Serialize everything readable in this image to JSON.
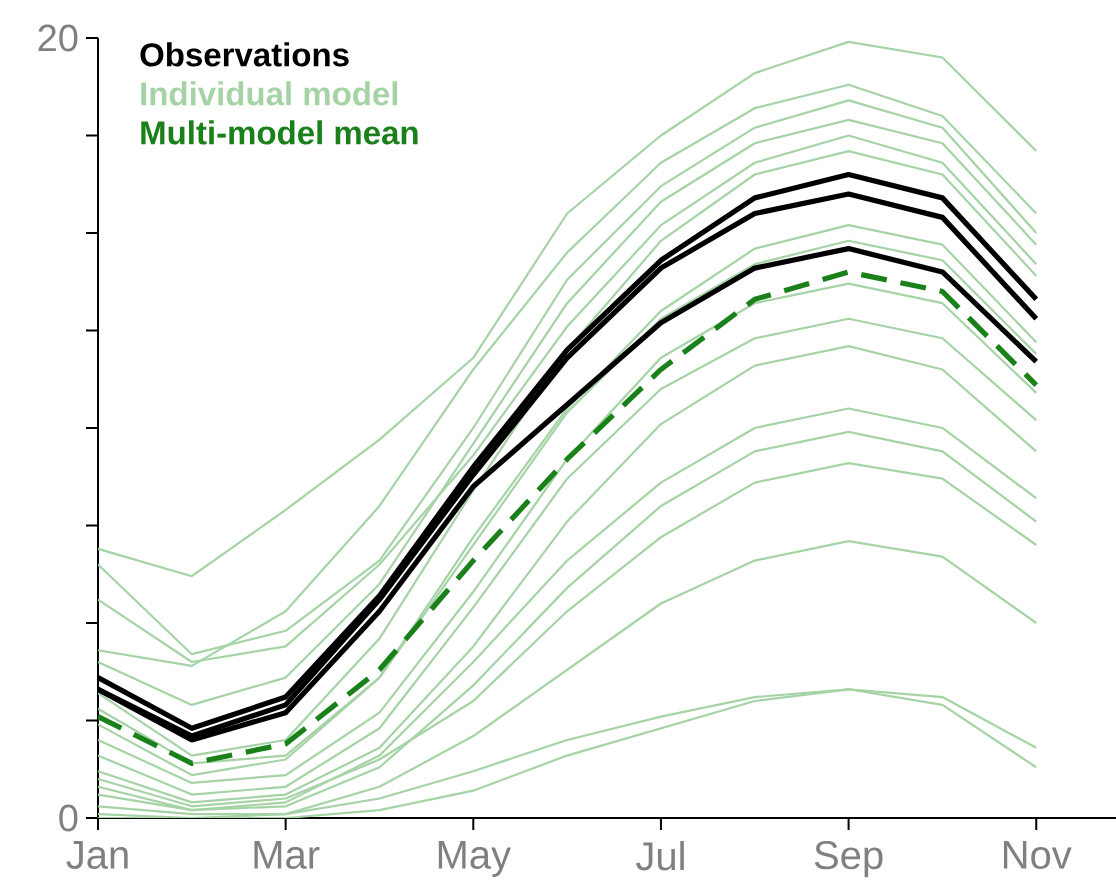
{
  "chart_data": {
    "type": "line",
    "categories": [
      "Jan",
      null,
      "Mar",
      null,
      "May",
      null,
      "Jul",
      null,
      "Sep",
      null,
      "Nov"
    ],
    "ylim": [
      0,
      20
    ],
    "yticks": [
      0,
      {
        "value": 2.5,
        "label": null
      },
      {
        "value": 5,
        "label": null
      },
      {
        "value": 7.5,
        "label": null
      },
      {
        "value": 10,
        "label": null
      },
      {
        "value": 12.5,
        "label": null
      },
      {
        "value": 15,
        "label": null
      },
      {
        "value": 17.5,
        "label": null
      },
      20
    ],
    "legend": "top left",
    "marker": "none",
    "series": [
      {
        "name": "Observations",
        "color": "#000000",
        "values": [
          3.6,
          2.3,
          3.1,
          5.7,
          9.0,
          12.0,
          14.3,
          15.9,
          16.5,
          15.9,
          13.3
        ]
      },
      {
        "name": "Individual model",
        "color": "#a6d3a6",
        "values": [
          6.9,
          6.2,
          7.9,
          9.7,
          11.8,
          15.5,
          17.5,
          19.1,
          19.9,
          19.5,
          17.1
        ]
      },
      {
        "name": "Multi-model mean",
        "color": "#1a801a",
        "line_style": "dashed",
        "values": [
          2.6,
          1.4,
          1.9,
          3.8,
          6.6,
          9.2,
          11.5,
          13.3,
          14.0,
          13.5,
          11.1
        ]
      },
      {
        "color": "#000000",
        "values": [
          3.3,
          2.1,
          2.9,
          5.6,
          8.8,
          11.8,
          14.1,
          15.5,
          16.0,
          15.4,
          12.8
        ]
      },
      {
        "color": "#000000",
        "values": [
          3.3,
          2.0,
          2.7,
          5.3,
          8.5,
          10.6,
          12.7,
          14.1,
          14.6,
          14.0,
          11.7
        ]
      },
      {
        "color": "#a6d3a6",
        "values": [
          4.3,
          3.9,
          5.3,
          8.0,
          11.5,
          14.5,
          16.8,
          18.2,
          18.8,
          18.0,
          15.5
        ]
      },
      {
        "color": "#a6d3a6",
        "values": [
          6.5,
          4.2,
          4.8,
          6.6,
          10.0,
          13.8,
          16.2,
          17.7,
          18.4,
          17.7,
          15.0
        ]
      },
      {
        "color": "#a6d3a6",
        "values": [
          4.0,
          2.9,
          3.6,
          6.0,
          9.6,
          13.2,
          15.8,
          17.3,
          17.9,
          17.3,
          14.7
        ]
      },
      {
        "color": "#a6d3a6",
        "values": [
          5.6,
          4.0,
          4.4,
          6.5,
          9.3,
          12.6,
          15.2,
          16.8,
          17.5,
          16.8,
          14.2
        ]
      },
      {
        "color": "#a6d3a6",
        "values": [
          3.2,
          1.6,
          2.0,
          4.6,
          8.4,
          12.0,
          14.8,
          16.5,
          17.1,
          16.5,
          13.9
        ]
      },
      {
        "color": "#a6d3a6",
        "values": [
          2.8,
          1.4,
          1.6,
          3.6,
          7.2,
          10.5,
          13.0,
          14.6,
          15.2,
          14.7,
          12.2
        ]
      },
      {
        "color": "#a6d3a6",
        "values": [
          2.4,
          1.1,
          1.5,
          3.6,
          7.0,
          10.4,
          12.8,
          14.2,
          14.8,
          14.3,
          11.9
        ]
      },
      {
        "color": "#a6d3a6",
        "values": [
          2.0,
          0.9,
          1.1,
          2.7,
          5.8,
          9.2,
          11.8,
          13.2,
          13.7,
          13.2,
          10.9
        ]
      },
      {
        "color": "#a6d3a6",
        "values": [
          1.6,
          0.6,
          0.8,
          2.3,
          5.4,
          8.7,
          11.0,
          12.3,
          12.8,
          12.3,
          10.2
        ]
      },
      {
        "color": "#a6d3a6",
        "values": [
          1.2,
          0.4,
          0.6,
          1.8,
          4.4,
          7.6,
          10.1,
          11.6,
          12.1,
          11.5,
          9.4
        ]
      },
      {
        "color": "#a6d3a6",
        "values": [
          0.8,
          0.2,
          0.4,
          1.6,
          4.0,
          6.6,
          8.6,
          10.0,
          10.5,
          10.0,
          8.2
        ]
      },
      {
        "color": "#a6d3a6",
        "values": [
          0.6,
          0.2,
          0.3,
          1.3,
          3.4,
          5.9,
          8.0,
          9.4,
          9.9,
          9.4,
          7.6
        ]
      },
      {
        "color": "#a6d3a6",
        "values": [
          1.0,
          0.3,
          0.5,
          1.5,
          3.0,
          5.3,
          7.2,
          8.6,
          9.1,
          8.7,
          7.0
        ]
      },
      {
        "color": "#a6d3a6",
        "values": [
          0.3,
          0.1,
          0.1,
          0.8,
          2.1,
          3.8,
          5.5,
          6.6,
          7.1,
          6.7,
          5.0
        ]
      },
      {
        "color": "#a6d3a6",
        "values": [
          0.1,
          0.0,
          0.1,
          0.5,
          1.2,
          2.0,
          2.6,
          3.1,
          3.3,
          3.1,
          1.8
        ]
      },
      {
        "color": "#a6d3a6",
        "values": [
          0.0,
          0.0,
          0.0,
          0.2,
          0.7,
          1.6,
          2.3,
          3.0,
          3.3,
          2.9,
          1.3
        ]
      }
    ]
  }
}
